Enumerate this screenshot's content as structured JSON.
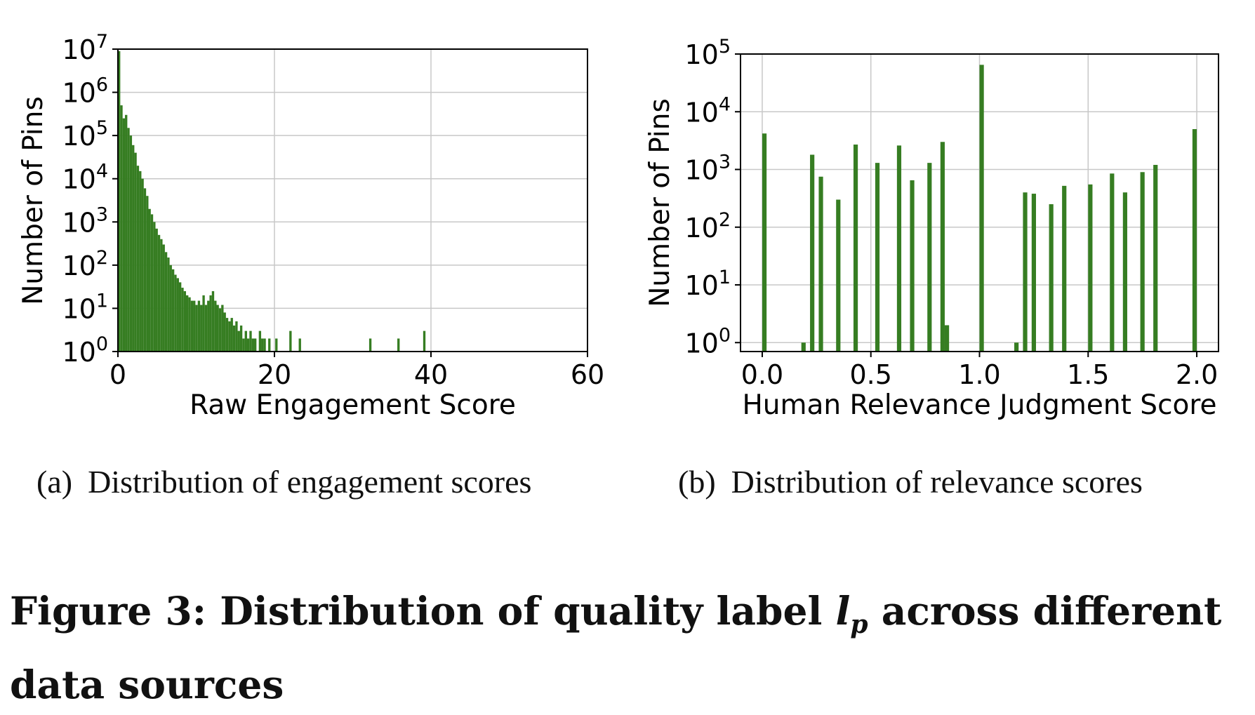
{
  "figure_caption": {
    "prefix": "Figure 3: Distribution of quality label ",
    "symbol": "l",
    "symbol_subscript": "p",
    "suffix": " across different data sources"
  },
  "subcaptions": [
    {
      "label": "(a)",
      "text": "Distribution of engagement scores"
    },
    {
      "label": "(b)",
      "text": "Distribution of relevance scores"
    }
  ],
  "colors": {
    "bar": "#367d22",
    "grid": "#c8c8c8",
    "axis": "#000000"
  },
  "chart_data": [
    {
      "type": "bar",
      "subplot": "(a)",
      "xlabel": "Raw Engagement Score",
      "ylabel": "Number of Pins",
      "x_ticks": [
        0,
        20,
        40,
        60
      ],
      "y_ticks_exponents": [
        0,
        1,
        2,
        3,
        4,
        5,
        6,
        7
      ],
      "xlim": [
        0,
        60
      ],
      "y_scale": "log",
      "ylim": [
        1,
        10000000
      ],
      "grid": true,
      "bin_width": 0.3,
      "bins": [
        [
          0.15,
          9000000
        ],
        [
          0.45,
          500000
        ],
        [
          0.75,
          250000
        ],
        [
          1.05,
          300000
        ],
        [
          1.35,
          150000
        ],
        [
          1.65,
          100000
        ],
        [
          1.95,
          60000
        ],
        [
          2.25,
          40000
        ],
        [
          2.55,
          20000
        ],
        [
          2.85,
          15000
        ],
        [
          3.15,
          10000
        ],
        [
          3.45,
          6000
        ],
        [
          3.75,
          4000
        ],
        [
          4.05,
          2000
        ],
        [
          4.35,
          1500
        ],
        [
          4.65,
          1000
        ],
        [
          4.95,
          700
        ],
        [
          5.25,
          500
        ],
        [
          5.55,
          400
        ],
        [
          5.85,
          300
        ],
        [
          6.15,
          200
        ],
        [
          6.45,
          150
        ],
        [
          6.75,
          100
        ],
        [
          7.05,
          80
        ],
        [
          7.35,
          60
        ],
        [
          7.65,
          50
        ],
        [
          7.95,
          40
        ],
        [
          8.25,
          30
        ],
        [
          8.55,
          25
        ],
        [
          8.85,
          20
        ],
        [
          9.15,
          18
        ],
        [
          9.45,
          15
        ],
        [
          9.75,
          15
        ],
        [
          10.05,
          12
        ],
        [
          10.35,
          15
        ],
        [
          10.65,
          12
        ],
        [
          10.95,
          20
        ],
        [
          11.25,
          12
        ],
        [
          11.55,
          15
        ],
        [
          11.85,
          20
        ],
        [
          12.15,
          25
        ],
        [
          12.45,
          15
        ],
        [
          12.75,
          12
        ],
        [
          13.05,
          10
        ],
        [
          13.35,
          12
        ],
        [
          13.65,
          8
        ],
        [
          13.95,
          6
        ],
        [
          14.25,
          5
        ],
        [
          14.55,
          6
        ],
        [
          14.85,
          4
        ],
        [
          15.15,
          5
        ],
        [
          15.45,
          3
        ],
        [
          15.75,
          4
        ],
        [
          16.05,
          2
        ],
        [
          16.35,
          3
        ],
        [
          16.65,
          2
        ],
        [
          16.95,
          3
        ],
        [
          17.25,
          2
        ],
        [
          17.55,
          2
        ],
        [
          17.85,
          1
        ],
        [
          18.15,
          3
        ],
        [
          18.45,
          2
        ],
        [
          18.75,
          2
        ],
        [
          19.05,
          1
        ],
        [
          19.35,
          2
        ],
        [
          19.65,
          1
        ],
        [
          20.25,
          2
        ],
        [
          21.15,
          1
        ],
        [
          22.05,
          3
        ],
        [
          22.35,
          1
        ],
        [
          23.25,
          2
        ],
        [
          23.55,
          1
        ],
        [
          24.15,
          1
        ],
        [
          28.35,
          1
        ],
        [
          32.25,
          2
        ],
        [
          33.15,
          1
        ],
        [
          35.85,
          2
        ],
        [
          36.75,
          1
        ],
        [
          37.65,
          1
        ],
        [
          39.15,
          3
        ],
        [
          48.45,
          1
        ],
        [
          50.85,
          1
        ],
        [
          52.35,
          1
        ]
      ]
    },
    {
      "type": "bar",
      "subplot": "(b)",
      "xlabel": "Human Relevance Judgment Score",
      "ylabel": "Number of Pins",
      "x_ticks": [
        "0.0",
        "0.5",
        "1.0",
        "1.5",
        "2.0"
      ],
      "y_ticks_exponents": [
        0,
        1,
        2,
        3,
        4,
        5
      ],
      "xlim": [
        -0.1,
        2.1
      ],
      "y_scale": "log",
      "ylim": [
        0.7,
        100000
      ],
      "grid": true,
      "bin_width": 0.02,
      "bins": [
        [
          0.01,
          4200
        ],
        [
          0.19,
          1
        ],
        [
          0.23,
          1800
        ],
        [
          0.27,
          750
        ],
        [
          0.35,
          300
        ],
        [
          0.43,
          2700
        ],
        [
          0.53,
          1300
        ],
        [
          0.63,
          2600
        ],
        [
          0.69,
          650
        ],
        [
          0.77,
          1300
        ],
        [
          0.83,
          3000
        ],
        [
          0.85,
          2
        ],
        [
          1.01,
          65000
        ],
        [
          1.17,
          1
        ],
        [
          1.21,
          400
        ],
        [
          1.25,
          380
        ],
        [
          1.33,
          250
        ],
        [
          1.39,
          520
        ],
        [
          1.51,
          550
        ],
        [
          1.61,
          850
        ],
        [
          1.67,
          400
        ],
        [
          1.75,
          900
        ],
        [
          1.81,
          1200
        ],
        [
          1.99,
          5000
        ]
      ]
    }
  ]
}
